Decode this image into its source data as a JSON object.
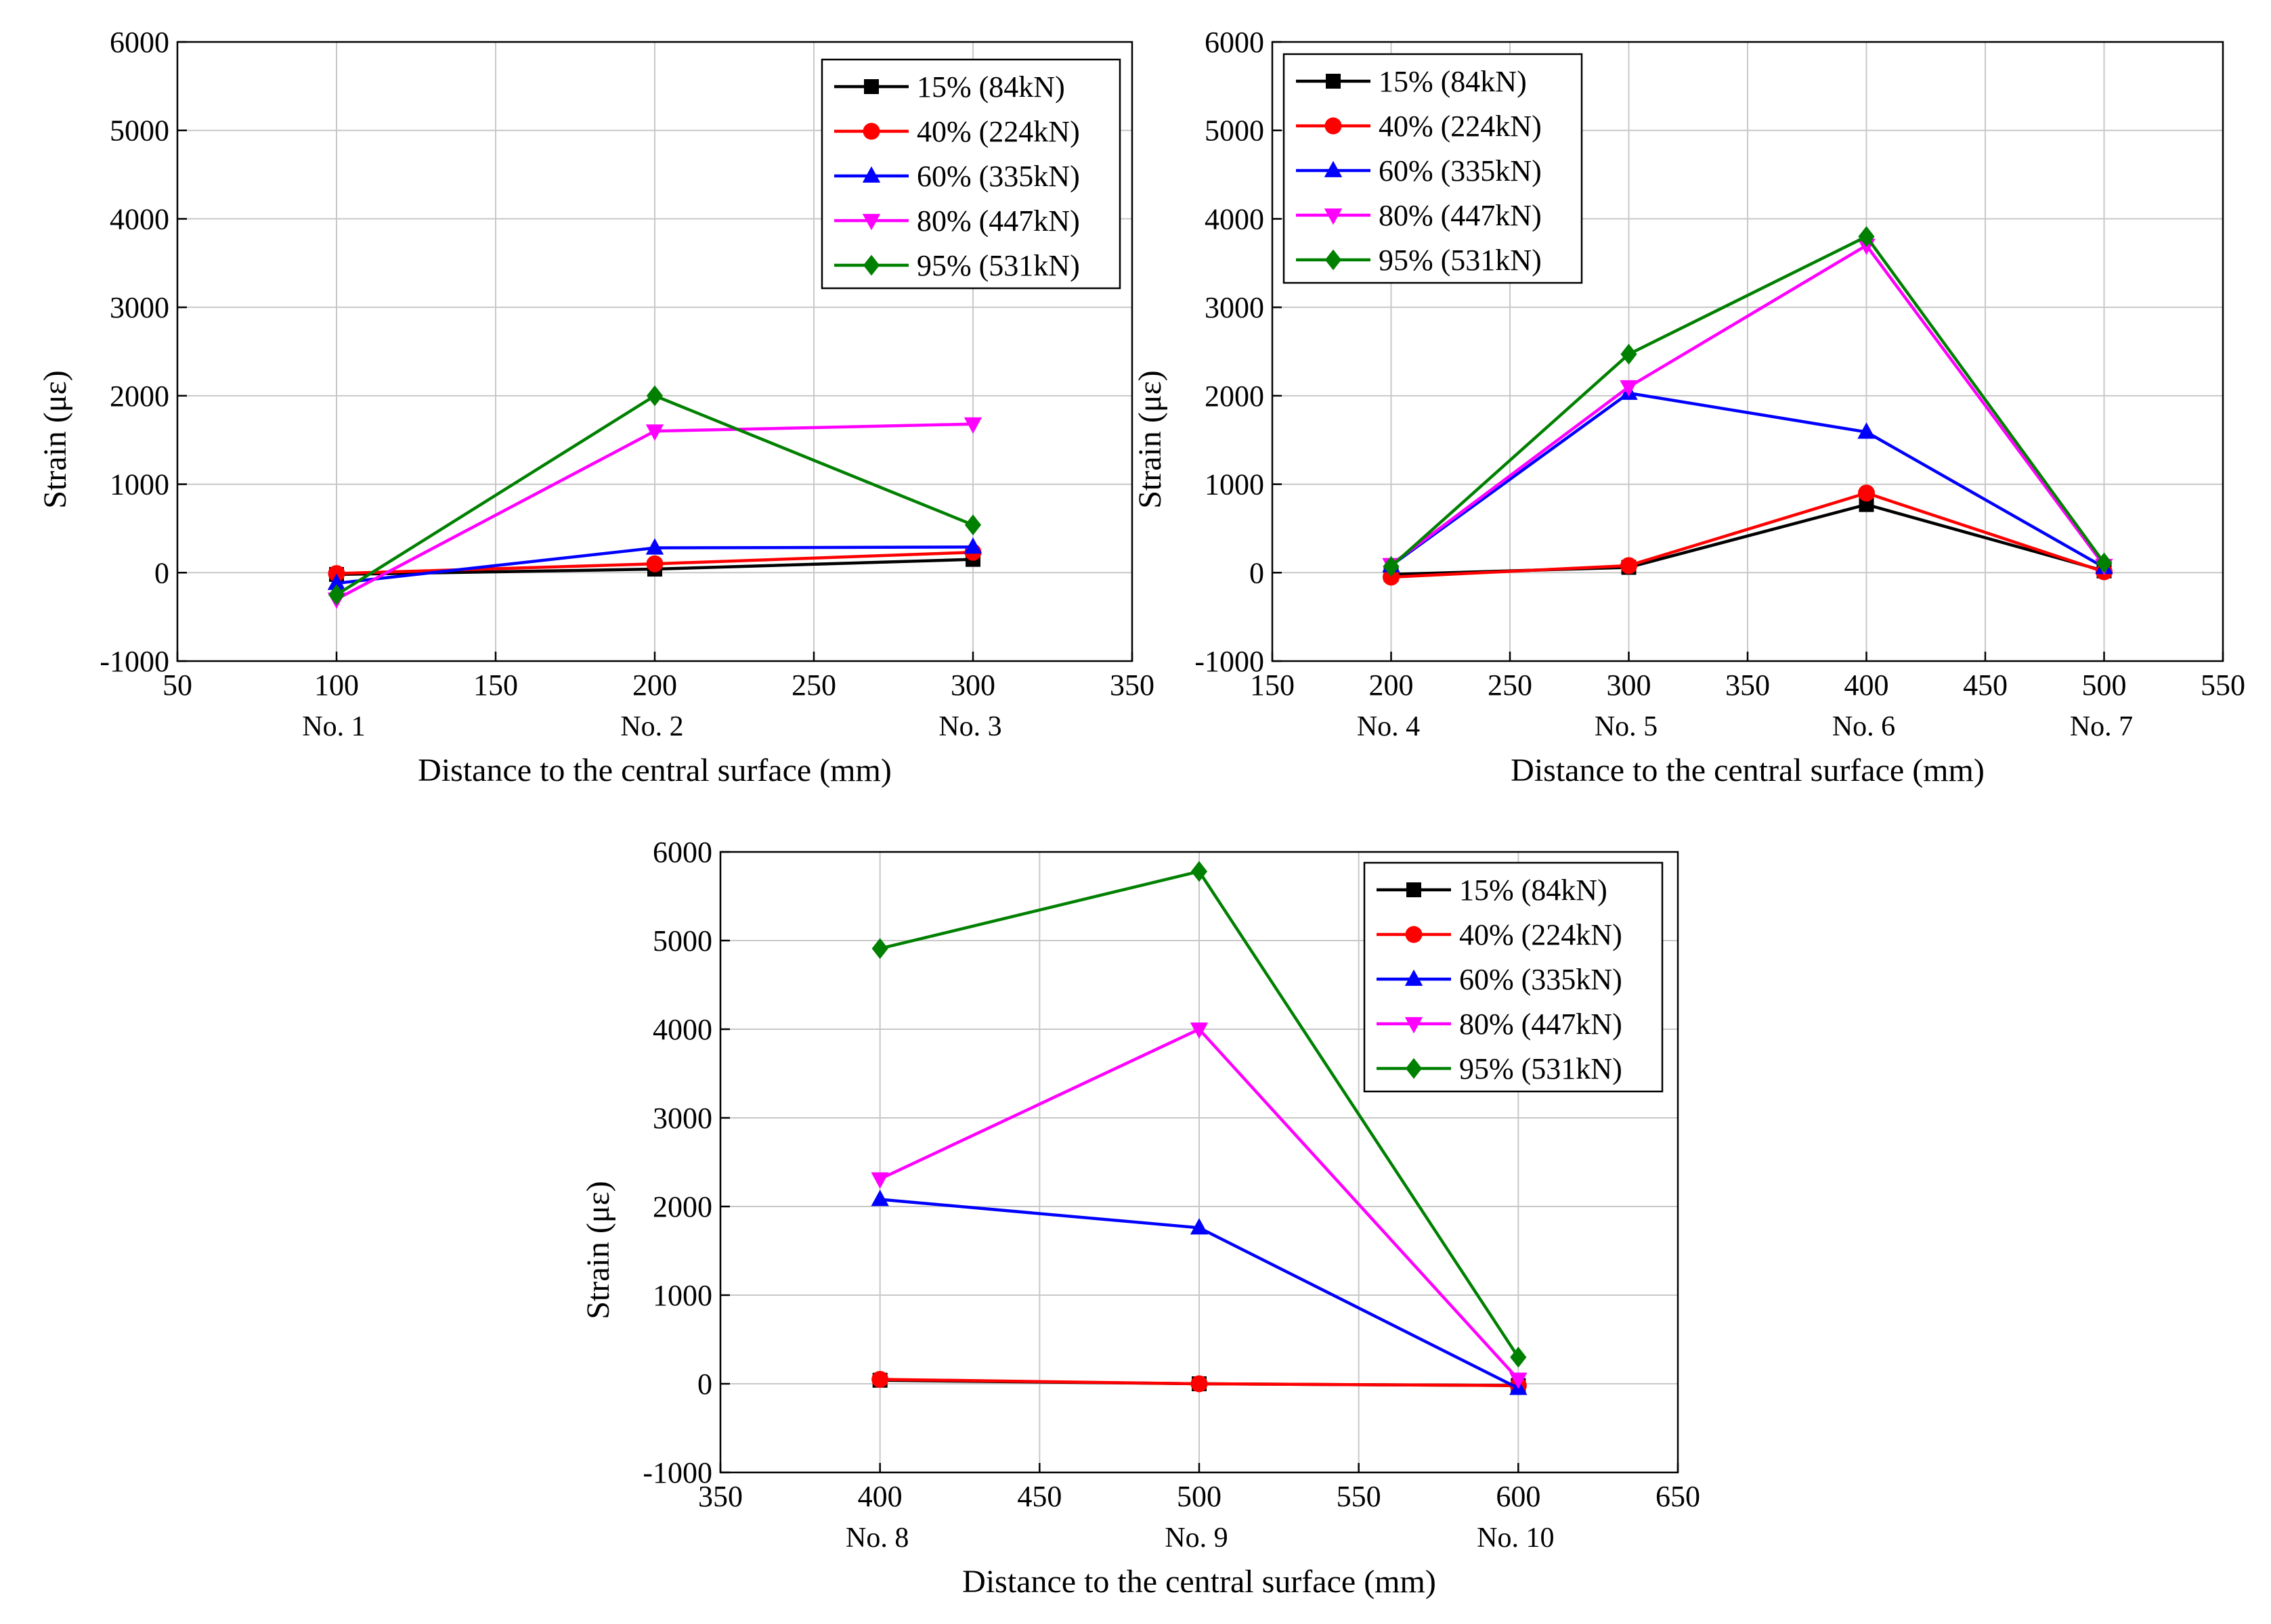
{
  "chart_data": [
    {
      "type": "line",
      "xlabel": "Distance to the central surface (mm)",
      "ylabel": "Strain (με)",
      "xlim": [
        50,
        350
      ],
      "ylim": [
        -1000,
        6000
      ],
      "xticks": [
        50,
        100,
        150,
        200,
        250,
        300,
        350
      ],
      "yticks": [
        -1000,
        0,
        1000,
        2000,
        3000,
        4000,
        5000,
        6000
      ],
      "points": [
        {
          "x": 100,
          "label": "No. 1"
        },
        {
          "x": 200,
          "label": "No. 2"
        },
        {
          "x": 300,
          "label": "No. 3"
        }
      ],
      "grid": true,
      "legend": "top-right",
      "x": [
        100,
        200,
        300
      ],
      "series": [
        {
          "name": "15% (84kN)",
          "color": "#000000",
          "marker": "square",
          "values": [
            -20,
            40,
            150
          ]
        },
        {
          "name": "40% (224kN)",
          "color": "#ff0000",
          "marker": "circle",
          "values": [
            -10,
            100,
            230
          ]
        },
        {
          "name": "60% (335kN)",
          "color": "#0000ff",
          "marker": "triangle-up",
          "values": [
            -120,
            280,
            290
          ]
        },
        {
          "name": "80% (447kN)",
          "color": "#ff00ff",
          "marker": "triangle-down",
          "values": [
            -300,
            1600,
            1680
          ]
        },
        {
          "name": "95% (531kN)",
          "color": "#008000",
          "marker": "diamond",
          "values": [
            -250,
            2000,
            540
          ]
        }
      ]
    },
    {
      "type": "line",
      "xlabel": "Distance to the central surface (mm)",
      "ylabel": "Strain (με)",
      "xlim": [
        150,
        550
      ],
      "ylim": [
        -1000,
        6000
      ],
      "xticks": [
        150,
        200,
        250,
        300,
        350,
        400,
        450,
        500,
        550
      ],
      "yticks": [
        -1000,
        0,
        1000,
        2000,
        3000,
        4000,
        5000,
        6000
      ],
      "points": [
        {
          "x": 200,
          "label": "No. 4"
        },
        {
          "x": 300,
          "label": "No. 5"
        },
        {
          "x": 400,
          "label": "No. 6"
        },
        {
          "x": 500,
          "label": "No. 7"
        }
      ],
      "grid": true,
      "legend": "top-left",
      "x": [
        200,
        300,
        400,
        500
      ],
      "series": [
        {
          "name": "15% (84kN)",
          "color": "#000000",
          "marker": "square",
          "values": [
            -20,
            60,
            770,
            20
          ]
        },
        {
          "name": "40% (224kN)",
          "color": "#ff0000",
          "marker": "circle",
          "values": [
            -50,
            80,
            900,
            10
          ]
        },
        {
          "name": "60% (335kN)",
          "color": "#0000ff",
          "marker": "triangle-up",
          "values": [
            80,
            2030,
            1590,
            60
          ]
        },
        {
          "name": "80% (447kN)",
          "color": "#ff00ff",
          "marker": "triangle-down",
          "values": [
            90,
            2100,
            3700,
            80
          ]
        },
        {
          "name": "95% (531kN)",
          "color": "#008000",
          "marker": "diamond",
          "values": [
            70,
            2470,
            3800,
            110
          ]
        }
      ]
    },
    {
      "type": "line",
      "xlabel": "Distance to the central surface (mm)",
      "ylabel": "Strain (με)",
      "xlim": [
        350,
        650
      ],
      "ylim": [
        -1000,
        6000
      ],
      "xticks": [
        350,
        400,
        450,
        500,
        550,
        600,
        650
      ],
      "yticks": [
        -1000,
        0,
        1000,
        2000,
        3000,
        4000,
        5000,
        6000
      ],
      "points": [
        {
          "x": 400,
          "label": "No. 8"
        },
        {
          "x": 500,
          "label": "No. 9"
        },
        {
          "x": 600,
          "label": "No. 10"
        }
      ],
      "grid": true,
      "legend": "top-right",
      "x": [
        400,
        500,
        600
      ],
      "series": [
        {
          "name": "15% (84kN)",
          "color": "#000000",
          "marker": "square",
          "values": [
            40,
            0,
            -20
          ]
        },
        {
          "name": "40% (224kN)",
          "color": "#ff0000",
          "marker": "circle",
          "values": [
            50,
            0,
            -20
          ]
        },
        {
          "name": "60% (335kN)",
          "color": "#0000ff",
          "marker": "triangle-up",
          "values": [
            2080,
            1760,
            -50
          ]
        },
        {
          "name": "80% (447kN)",
          "color": "#ff00ff",
          "marker": "triangle-down",
          "values": [
            2310,
            4000,
            50
          ]
        },
        {
          "name": "95% (531kN)",
          "color": "#008000",
          "marker": "diamond",
          "values": [
            4910,
            5780,
            300
          ]
        }
      ]
    }
  ]
}
